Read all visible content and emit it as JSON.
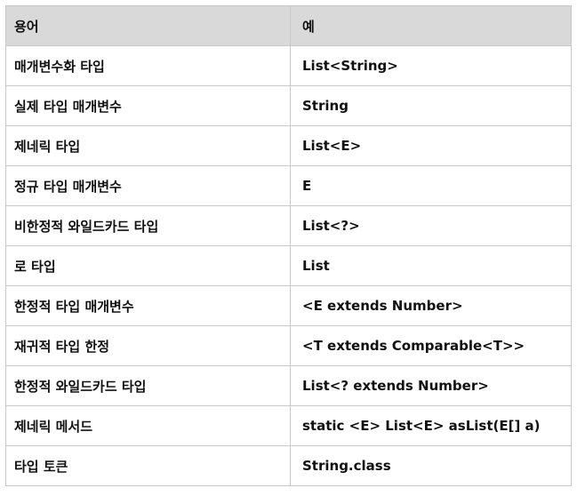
{
  "table": {
    "headers": {
      "term": "용어",
      "example": "예"
    },
    "rows": [
      {
        "term": "매개변수화 타입",
        "example": "List<String>"
      },
      {
        "term": "실제 타입 매개변수",
        "example": "String"
      },
      {
        "term": "제네릭 타입",
        "example": "List<E>"
      },
      {
        "term": "정규 타입 매개변수",
        "example": "E"
      },
      {
        "term": "비한정적 와일드카드 타입",
        "example": "List<?>"
      },
      {
        "term": "로 타입",
        "example": "List"
      },
      {
        "term": "한정적 타입 매개변수",
        "example": "<E extends Number>"
      },
      {
        "term": "재귀적 타입 한정",
        "example": "<T extends Comparable<T>>"
      },
      {
        "term": "한정적 와일드카드 타입",
        "example": "List<? extends Number>"
      },
      {
        "term": "제네릭 메서드",
        "example": "static <E> List<E> asList(E[] a)"
      },
      {
        "term": "타입 토큰",
        "example": "String.class"
      }
    ]
  }
}
